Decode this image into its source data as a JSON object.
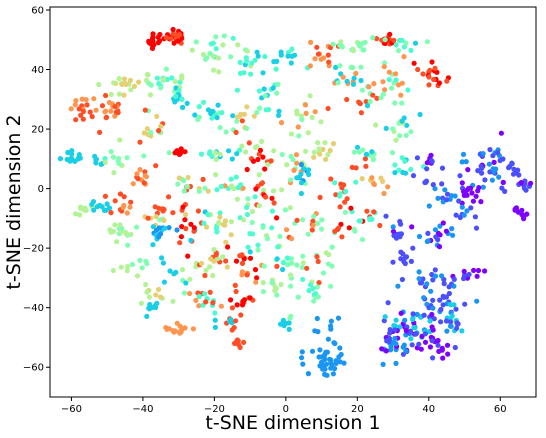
{
  "chart_data": {
    "type": "scatter",
    "title": "",
    "xlabel": "t-SNE dimension 1",
    "ylabel": "t-SNE dimension 2",
    "xlim": [
      -66,
      70
    ],
    "ylim": [
      -70,
      61
    ],
    "xticks": [
      -60,
      -40,
      -20,
      0,
      20,
      40,
      60
    ],
    "yticks": [
      -60,
      -40,
      -20,
      0,
      20,
      40,
      60
    ],
    "grid": false,
    "legend": "none",
    "colormap": "rainbow",
    "colors": [
      "#7f00ff",
      "#4b4ffc",
      "#1996f3",
      "#19cfe5",
      "#4dfbd0",
      "#80ffb4",
      "#b3f396",
      "#e6cf72",
      "#ff954e",
      "#ff4d25",
      "#ff0000"
    ],
    "clusters": [
      {
        "cx": -31,
        "cy": 51,
        "sx": 1.5,
        "sy": 1.2,
        "n": 28,
        "colors": [
          10,
          9
        ]
      },
      {
        "cx": -37,
        "cy": 50,
        "sx": 1.2,
        "sy": 1.2,
        "n": 14,
        "colors": [
          10
        ]
      },
      {
        "cx": -20,
        "cy": 46,
        "sx": 3.5,
        "sy": 3,
        "n": 22,
        "colors": [
          5,
          6,
          4
        ]
      },
      {
        "cx": -10,
        "cy": 40,
        "sx": 3,
        "sy": 3,
        "n": 14,
        "colors": [
          4,
          3,
          6
        ]
      },
      {
        "cx": 0,
        "cy": 45,
        "sx": 3,
        "sy": 2,
        "n": 12,
        "colors": [
          3,
          4
        ]
      },
      {
        "cx": 10,
        "cy": 44,
        "sx": 2,
        "sy": 2,
        "n": 14,
        "colors": [
          9,
          8
        ]
      },
      {
        "cx": 20,
        "cy": 48,
        "sx": 4,
        "sy": 1.5,
        "n": 16,
        "colors": [
          6,
          5
        ]
      },
      {
        "cx": 28,
        "cy": 50,
        "sx": 1.5,
        "sy": 1,
        "n": 16,
        "colors": [
          10,
          9
        ]
      },
      {
        "cx": 33,
        "cy": 49,
        "sx": 2.5,
        "sy": 1.5,
        "n": 10,
        "colors": [
          4,
          5,
          3
        ]
      },
      {
        "cx": 41,
        "cy": 38,
        "sx": 2,
        "sy": 2,
        "n": 18,
        "colors": [
          10,
          9
        ]
      },
      {
        "cx": 30,
        "cy": 36,
        "sx": 3,
        "sy": 3,
        "n": 20,
        "colors": [
          5,
          4,
          8
        ]
      },
      {
        "cx": 18,
        "cy": 38,
        "sx": 3,
        "sy": 3,
        "n": 18,
        "colors": [
          3,
          8,
          5
        ]
      },
      {
        "cx": 22,
        "cy": 30,
        "sx": 3,
        "sy": 2,
        "n": 14,
        "colors": [
          9,
          5,
          3
        ]
      },
      {
        "cx": 31,
        "cy": 20,
        "sx": 3,
        "sy": 3,
        "n": 16,
        "colors": [
          5,
          3,
          6
        ]
      },
      {
        "cx": -47,
        "cy": 35,
        "sx": 2.5,
        "sy": 2,
        "n": 18,
        "colors": [
          6,
          7
        ]
      },
      {
        "cx": -35,
        "cy": 35,
        "sx": 3,
        "sy": 3,
        "n": 22,
        "colors": [
          5,
          6,
          4
        ]
      },
      {
        "cx": -30,
        "cy": 30,
        "sx": 2,
        "sy": 2,
        "n": 12,
        "colors": [
          4,
          3
        ]
      },
      {
        "cx": -57,
        "cy": 27,
        "sx": 2,
        "sy": 2.5,
        "n": 18,
        "colors": [
          8,
          9
        ]
      },
      {
        "cx": -50,
        "cy": 26,
        "sx": 2,
        "sy": 2.5,
        "n": 18,
        "colors": [
          8,
          9
        ]
      },
      {
        "cx": -38,
        "cy": 20,
        "sx": 3,
        "sy": 3,
        "n": 16,
        "colors": [
          7,
          5,
          9
        ]
      },
      {
        "cx": -22,
        "cy": 26,
        "sx": 3,
        "sy": 2,
        "n": 18,
        "colors": [
          3,
          4,
          5
        ]
      },
      {
        "cx": -12,
        "cy": 22,
        "sx": 3,
        "sy": 3,
        "n": 16,
        "colors": [
          9,
          5,
          7
        ]
      },
      {
        "cx": -5,
        "cy": 30,
        "sx": 3,
        "sy": 3,
        "n": 16,
        "colors": [
          4,
          5,
          3
        ]
      },
      {
        "cx": 5,
        "cy": 24,
        "sx": 3,
        "sy": 3,
        "n": 16,
        "colors": [
          5,
          6,
          8
        ]
      },
      {
        "cx": -60,
        "cy": 11,
        "sx": 1.5,
        "sy": 1.5,
        "n": 12,
        "colors": [
          3
        ]
      },
      {
        "cx": -53,
        "cy": 10,
        "sx": 1.5,
        "sy": 1,
        "n": 8,
        "colors": [
          4,
          3
        ]
      },
      {
        "cx": -47,
        "cy": 10,
        "sx": 2,
        "sy": 2,
        "n": 10,
        "colors": [
          5,
          6
        ]
      },
      {
        "cx": -30,
        "cy": 12,
        "sx": 1.5,
        "sy": 1,
        "n": 10,
        "colors": [
          10
        ]
      },
      {
        "cx": -20,
        "cy": 12,
        "sx": 3,
        "sy": 2,
        "n": 14,
        "colors": [
          4,
          3,
          6
        ]
      },
      {
        "cx": -8,
        "cy": 10,
        "sx": 3,
        "sy": 3,
        "n": 18,
        "colors": [
          10,
          9,
          6
        ]
      },
      {
        "cx": 2,
        "cy": 8,
        "sx": 3,
        "sy": 3,
        "n": 16,
        "colors": [
          6,
          5,
          8
        ]
      },
      {
        "cx": 10,
        "cy": 12,
        "sx": 2,
        "sy": 2,
        "n": 12,
        "colors": [
          7,
          6
        ]
      },
      {
        "cx": 22,
        "cy": 10,
        "sx": 2,
        "sy": 3,
        "n": 14,
        "colors": [
          9,
          5,
          3
        ]
      },
      {
        "cx": 33,
        "cy": 8,
        "sx": 2,
        "sy": 2,
        "n": 10,
        "colors": [
          3,
          4
        ]
      },
      {
        "cx": -40,
        "cy": 4,
        "sx": 2,
        "sy": 2,
        "n": 12,
        "colors": [
          9,
          8
        ]
      },
      {
        "cx": -28,
        "cy": 0,
        "sx": 3,
        "sy": 3,
        "n": 18,
        "colors": [
          9,
          5,
          7
        ]
      },
      {
        "cx": -15,
        "cy": 2,
        "sx": 3,
        "sy": 3,
        "n": 18,
        "colors": [
          6,
          4,
          8
        ]
      },
      {
        "cx": -5,
        "cy": -2,
        "sx": 3,
        "sy": 3,
        "n": 18,
        "colors": [
          9,
          10,
          6
        ]
      },
      {
        "cx": 5,
        "cy": 4,
        "sx": 2,
        "sy": 2,
        "n": 12,
        "colors": [
          3,
          2
        ]
      },
      {
        "cx": 15,
        "cy": -2,
        "sx": 3,
        "sy": 3,
        "n": 16,
        "colors": [
          4,
          5,
          9
        ]
      },
      {
        "cx": 25,
        "cy": 2,
        "sx": 2,
        "sy": 2,
        "n": 10,
        "colors": [
          8,
          7
        ]
      },
      {
        "cx": -57,
        "cy": -7,
        "sx": 1.5,
        "sy": 1,
        "n": 8,
        "colors": [
          6
        ]
      },
      {
        "cx": -52,
        "cy": -6,
        "sx": 1.5,
        "sy": 1,
        "n": 10,
        "colors": [
          3
        ]
      },
      {
        "cx": -46,
        "cy": -5,
        "sx": 2,
        "sy": 2,
        "n": 12,
        "colors": [
          8,
          9
        ]
      },
      {
        "cx": -46,
        "cy": -15,
        "sx": 2,
        "sy": 2,
        "n": 16,
        "colors": [
          6,
          5
        ]
      },
      {
        "cx": -36,
        "cy": -10,
        "sx": 2,
        "sy": 3,
        "n": 16,
        "colors": [
          9,
          5,
          7
        ]
      },
      {
        "cx": -27,
        "cy": -13,
        "sx": 3,
        "sy": 3,
        "n": 18,
        "colors": [
          10,
          9,
          3
        ]
      },
      {
        "cx": -35,
        "cy": -14,
        "sx": 2,
        "sy": 2,
        "n": 14,
        "colors": [
          3,
          2
        ]
      },
      {
        "cx": -18,
        "cy": -12,
        "sx": 3,
        "sy": 3,
        "n": 18,
        "colors": [
          6,
          7,
          4
        ]
      },
      {
        "cx": -6,
        "cy": -14,
        "sx": 3,
        "sy": 3,
        "n": 16,
        "colors": [
          4,
          5,
          6
        ]
      },
      {
        "cx": 5,
        "cy": -12,
        "sx": 3,
        "sy": 3,
        "n": 16,
        "colors": [
          9,
          8,
          5
        ]
      },
      {
        "cx": 15,
        "cy": -14,
        "sx": 3,
        "sy": 3,
        "n": 14,
        "colors": [
          10,
          9,
          5
        ]
      },
      {
        "cx": 23,
        "cy": -9,
        "sx": 2,
        "sy": 2,
        "n": 10,
        "colors": [
          9,
          4
        ]
      },
      {
        "cx": -42,
        "cy": -26,
        "sx": 2,
        "sy": 2,
        "n": 10,
        "colors": [
          6,
          5
        ]
      },
      {
        "cx": -30,
        "cy": -30,
        "sx": 3,
        "sy": 3,
        "n": 14,
        "colors": [
          3,
          5,
          6
        ]
      },
      {
        "cx": -20,
        "cy": -25,
        "sx": 3,
        "sy": 3,
        "n": 18,
        "colors": [
          9,
          6,
          7
        ]
      },
      {
        "cx": -10,
        "cy": -27,
        "sx": 3,
        "sy": 3,
        "n": 18,
        "colors": [
          10,
          9,
          8
        ]
      },
      {
        "cx": 0,
        "cy": -24,
        "sx": 3,
        "sy": 3,
        "n": 16,
        "colors": [
          5,
          4,
          3
        ]
      },
      {
        "cx": 10,
        "cy": -25,
        "sx": 3,
        "sy": 3,
        "n": 14,
        "colors": [
          9,
          5,
          6
        ]
      },
      {
        "cx": -38,
        "cy": -36,
        "sx": 2,
        "sy": 2,
        "n": 10,
        "colors": [
          7,
          6
        ]
      },
      {
        "cx": -37,
        "cy": -40,
        "sx": 1.5,
        "sy": 1,
        "n": 10,
        "colors": [
          3
        ]
      },
      {
        "cx": -23,
        "cy": -37,
        "sx": 3,
        "sy": 2,
        "n": 16,
        "colors": [
          8,
          9,
          4
        ]
      },
      {
        "cx": -13,
        "cy": -38,
        "sx": 2,
        "sy": 2,
        "n": 14,
        "colors": [
          10,
          9
        ]
      },
      {
        "cx": -2,
        "cy": -33,
        "sx": 3,
        "sy": 2,
        "n": 12,
        "colors": [
          6,
          5
        ]
      },
      {
        "cx": 8,
        "cy": -35,
        "sx": 3,
        "sy": 2,
        "n": 12,
        "colors": [
          5,
          4
        ]
      },
      {
        "cx": -30,
        "cy": -47,
        "sx": 2,
        "sy": 1,
        "n": 14,
        "colors": [
          8
        ]
      },
      {
        "cx": -15,
        "cy": -46,
        "sx": 2,
        "sy": 2,
        "n": 10,
        "colors": [
          9,
          3
        ]
      },
      {
        "cx": -13,
        "cy": -52,
        "sx": 1,
        "sy": 1,
        "n": 8,
        "colors": [
          9
        ]
      },
      {
        "cx": 1,
        "cy": -44,
        "sx": 2,
        "sy": 2,
        "n": 8,
        "colors": [
          3,
          5
        ]
      },
      {
        "cx": 11,
        "cy": -55,
        "sx": 2.5,
        "sy": 3,
        "n": 28,
        "colors": [
          2
        ]
      },
      {
        "cx": 13,
        "cy": -60,
        "sx": 1.5,
        "sy": 1.5,
        "n": 12,
        "colors": [
          2
        ]
      },
      {
        "cx": 12,
        "cy": -46,
        "sx": 1.5,
        "sy": 1.5,
        "n": 6,
        "colors": [
          2
        ]
      },
      {
        "cx": 40,
        "cy": 10,
        "sx": 1.5,
        "sy": 1.5,
        "n": 10,
        "colors": [
          0,
          1
        ]
      },
      {
        "cx": 40,
        "cy": 3,
        "sx": 2,
        "sy": 2,
        "n": 8,
        "colors": [
          1,
          2
        ]
      },
      {
        "cx": 45,
        "cy": -3,
        "sx": 2,
        "sy": 2,
        "n": 10,
        "colors": [
          2,
          1
        ]
      },
      {
        "cx": 55,
        "cy": 5,
        "sx": 4,
        "sy": 4,
        "n": 30,
        "colors": [
          1,
          0,
          2
        ]
      },
      {
        "cx": 57,
        "cy": 10,
        "sx": 2,
        "sy": 2,
        "n": 14,
        "colors": [
          2,
          1
        ]
      },
      {
        "cx": 52,
        "cy": -2,
        "sx": 2,
        "sy": 2,
        "n": 14,
        "colors": [
          0
        ]
      },
      {
        "cx": 66,
        "cy": -8,
        "sx": 1,
        "sy": 0.8,
        "n": 12,
        "colors": [
          0
        ]
      },
      {
        "cx": 67,
        "cy": 1,
        "sx": 1,
        "sy": 1,
        "n": 10,
        "colors": [
          0,
          1
        ]
      },
      {
        "cx": 64,
        "cy": 7,
        "sx": 1,
        "sy": 1.5,
        "n": 8,
        "colors": [
          1
        ]
      },
      {
        "cx": 42,
        "cy": -16,
        "sx": 3,
        "sy": 2,
        "n": 18,
        "colors": [
          1,
          0,
          2
        ]
      },
      {
        "cx": 50,
        "cy": -9,
        "sx": 2,
        "sy": 2,
        "n": 10,
        "colors": [
          1,
          2
        ]
      },
      {
        "cx": 31,
        "cy": -15,
        "sx": 2,
        "sy": 2,
        "n": 12,
        "colors": [
          1,
          0,
          2
        ]
      },
      {
        "cx": 33,
        "cy": -23,
        "sx": 1,
        "sy": 1.5,
        "n": 10,
        "colors": [
          1
        ]
      },
      {
        "cx": 38,
        "cy": -30,
        "sx": 3,
        "sy": 2,
        "n": 16,
        "colors": [
          1,
          2
        ]
      },
      {
        "cx": 51,
        "cy": -29,
        "sx": 2,
        "sy": 1.5,
        "n": 12,
        "colors": [
          1,
          0
        ]
      },
      {
        "cx": 44,
        "cy": -38,
        "sx": 3,
        "sy": 3,
        "n": 22,
        "colors": [
          1,
          2
        ]
      },
      {
        "cx": 36,
        "cy": -46,
        "sx": 5,
        "sy": 4,
        "n": 60,
        "colors": [
          1,
          0,
          2,
          3
        ]
      },
      {
        "cx": 32,
        "cy": -53,
        "sx": 3,
        "sy": 3,
        "n": 28,
        "colors": [
          2,
          1,
          0
        ]
      },
      {
        "cx": 42,
        "cy": -53,
        "sx": 3,
        "sy": 3,
        "n": 20,
        "colors": [
          0,
          1
        ]
      },
      {
        "cx": 47,
        "cy": -44,
        "sx": 2,
        "sy": 2,
        "n": 14,
        "colors": [
          2,
          3,
          1
        ]
      }
    ]
  }
}
